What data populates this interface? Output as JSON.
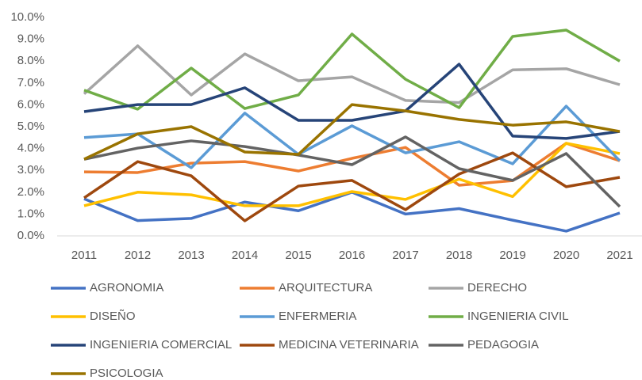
{
  "chart_data": {
    "type": "line",
    "categories": [
      "2011",
      "2012",
      "2013",
      "2014",
      "2015",
      "2016",
      "2017",
      "2018",
      "2019",
      "2020",
      "2021"
    ],
    "ylim": [
      0,
      10
    ],
    "yticks": [
      {
        "value": 0,
        "label": "0.0%"
      },
      {
        "value": 1,
        "label": "1.0%"
      },
      {
        "value": 2,
        "label": "2.0%"
      },
      {
        "value": 3,
        "label": "3.0%"
      },
      {
        "value": 4,
        "label": "4.0%"
      },
      {
        "value": 5,
        "label": "5.0%"
      },
      {
        "value": 6,
        "label": "6.0%"
      },
      {
        "value": 7,
        "label": "7.0%"
      },
      {
        "value": 8,
        "label": "8.0%"
      },
      {
        "value": 9,
        "label": "9.0%"
      },
      {
        "value": 10,
        "label": "10.0%"
      }
    ],
    "grid": false,
    "legend": "bottom",
    "series": [
      {
        "name": "AGRONOMIA",
        "color": "#4472c4",
        "values": [
          1.7,
          0.7,
          0.8,
          1.55,
          1.15,
          2.0,
          1.0,
          1.25,
          0.72,
          0.22,
          1.05
        ]
      },
      {
        "name": "ARQUITECTURA",
        "color": "#ed7d31",
        "values": [
          2.93,
          2.9,
          3.33,
          3.4,
          2.97,
          3.55,
          4.05,
          2.32,
          2.53,
          4.24,
          3.44
        ]
      },
      {
        "name": "DERECHO",
        "color": "#a5a5a5",
        "values": [
          6.5,
          8.7,
          6.45,
          8.33,
          7.1,
          7.28,
          6.2,
          6.1,
          7.6,
          7.65,
          6.92
        ]
      },
      {
        "name": "DISEÑO",
        "color": "#ffc000",
        "values": [
          1.38,
          2.0,
          1.88,
          1.38,
          1.38,
          2.03,
          1.67,
          2.6,
          1.8,
          4.24,
          3.77
        ]
      },
      {
        "name": "ENFERMERIA",
        "color": "#5b9bd5",
        "values": [
          4.5,
          4.67,
          3.12,
          5.62,
          3.73,
          5.04,
          3.8,
          4.31,
          3.3,
          5.94,
          3.44
        ]
      },
      {
        "name": "INGENIERIA CIVIL",
        "color": "#70ad47",
        "values": [
          6.67,
          5.8,
          7.68,
          5.83,
          6.45,
          9.24,
          7.17,
          5.87,
          9.13,
          9.42,
          8.0
        ]
      },
      {
        "name": "INGENIERIA COMERCIAL",
        "color": "#264478",
        "values": [
          5.69,
          6.01,
          6.01,
          6.78,
          5.29,
          5.29,
          5.72,
          7.86,
          4.57,
          4.46,
          4.78
        ]
      },
      {
        "name": "MEDICINA VETERINARIA",
        "color": "#9e480e",
        "values": [
          1.74,
          3.4,
          2.75,
          0.69,
          2.28,
          2.54,
          1.2,
          2.83,
          3.8,
          2.25,
          2.68
        ]
      },
      {
        "name": "PEDAGOGIA",
        "color": "#636363",
        "values": [
          3.51,
          4.02,
          4.35,
          4.09,
          3.7,
          3.26,
          4.53,
          3.08,
          2.54,
          3.77,
          1.34
        ]
      },
      {
        "name": "PSICOLOGIA",
        "color": "#997300",
        "values": [
          3.51,
          4.67,
          5.0,
          3.84,
          3.73,
          6.01,
          5.72,
          5.33,
          5.07,
          5.22,
          4.78
        ]
      }
    ]
  }
}
